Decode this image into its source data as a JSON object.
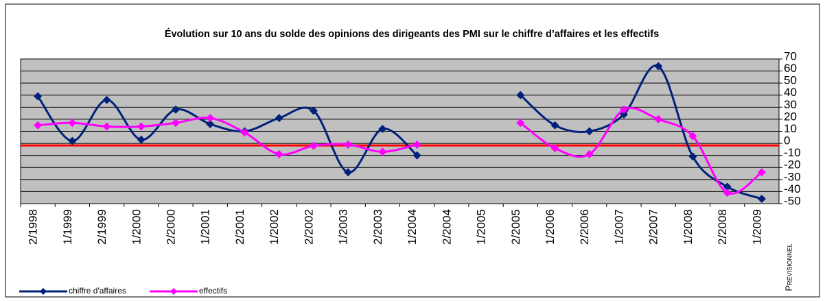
{
  "chart_data": {
    "type": "line",
    "title": "Évolution sur 10 ans du solde des opinions des dirigeants des PMI sur le chiffre d’affaires et les effectifs",
    "categories": [
      "2/1998",
      "1/1999",
      "2/1999",
      "1/2000",
      "2/2000",
      "1/2001",
      "2/2001",
      "1/2002",
      "2/2002",
      "1/2003",
      "2/2003",
      "1/2004",
      "2/2004",
      "1/2005",
      "2/2005",
      "1/2006",
      "2/2006",
      "1/2007",
      "2/2007",
      "1/2008",
      "2/2008",
      "1/2009"
    ],
    "series": [
      {
        "name": "chiffre d'affaires",
        "color": "#00207a",
        "values": [
          39,
          2,
          36,
          3,
          28,
          16,
          10,
          21,
          27,
          -24,
          12,
          -10,
          null,
          null,
          40,
          15,
          10,
          24,
          64,
          -11,
          -36,
          -46
        ]
      },
      {
        "name": "effectifs",
        "color": "#ff00ff",
        "values": [
          15,
          17,
          14,
          14,
          17,
          21,
          9,
          -9,
          -2,
          -1,
          -7,
          -1,
          null,
          null,
          17,
          -4,
          -9,
          28,
          20,
          6,
          -41,
          -24
        ]
      }
    ],
    "annotation": "Prévisionnel",
    "reference_line": {
      "value": 0,
      "color": "#ff0000"
    },
    "ylim": [
      -50,
      70
    ],
    "yticks": [
      -50,
      -40,
      -30,
      -20,
      -10,
      0,
      10,
      20,
      30,
      40,
      50,
      60,
      70
    ],
    "grid": true,
    "legend": "bottom-left"
  }
}
